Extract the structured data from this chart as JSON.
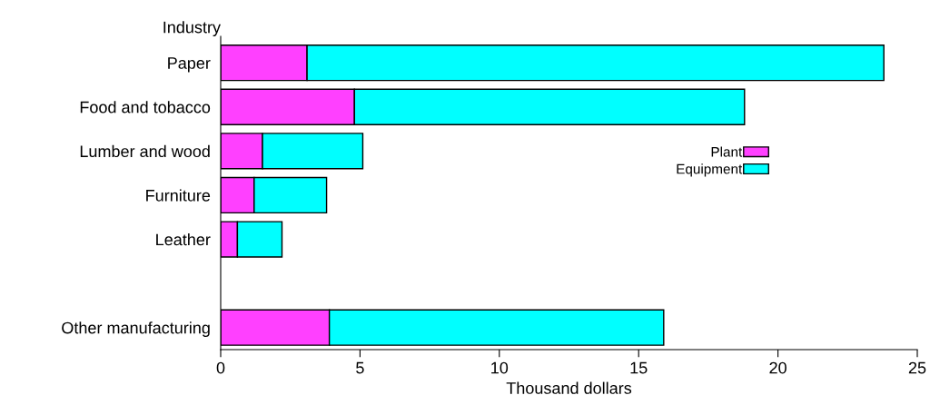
{
  "chart_data": {
    "type": "bar",
    "orientation": "horizontal",
    "stacked": true,
    "ylabel": "Industry",
    "xlabel": "Thousand dollars",
    "categories": [
      "Paper",
      "Food and tobacco",
      "Lumber and wood",
      "Furniture",
      "Leather",
      null,
      "Other manufacturing"
    ],
    "series": [
      {
        "name": "Plant",
        "color": "#ff40ff",
        "values": [
          3.1,
          4.8,
          1.5,
          1.2,
          0.6,
          null,
          3.9
        ]
      },
      {
        "name": "Equipment",
        "color": "#00ffff",
        "values": [
          20.7,
          14.0,
          3.6,
          2.6,
          1.6,
          null,
          12.0
        ]
      }
    ],
    "xlim": [
      0,
      25
    ],
    "xticks": [
      0,
      5,
      10,
      15,
      20,
      25
    ],
    "grid": false,
    "legend": "center"
  }
}
